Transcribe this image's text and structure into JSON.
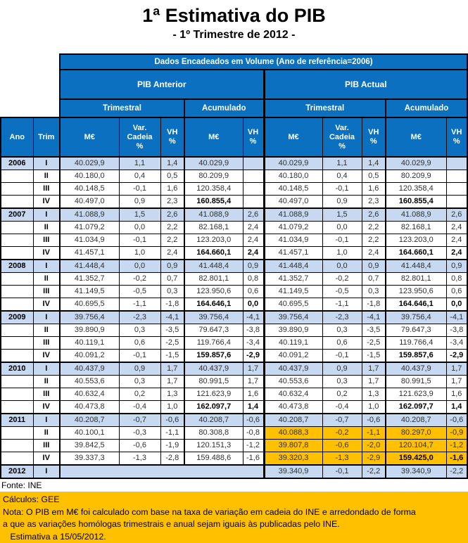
{
  "title": "1ª Estimativa do PIB",
  "subtitle": "- 1º Trimestre de 2012 -",
  "colors": {
    "header_blue": "#0b70bf",
    "row_shade_blue": "#c6d9f1",
    "highlight_orange": "#ffc000",
    "border_black": "#000000"
  },
  "table": {
    "band_title": "Dados Encadeados em Volume (Ano de referência=2006)",
    "section_left": "PIB Anterior",
    "section_right": "PIB  Actual",
    "sub_headers": [
      "Trimestral",
      "Acumulado",
      "Trimestral",
      "Acumulado"
    ],
    "col_headers": [
      "Ano",
      "Trim",
      "M€",
      "Var.\nCadeia\n%",
      "VH\n%",
      "M€",
      "VH\n%",
      "M€",
      "Var.\nCadeia\n%",
      "VH\n%",
      "M€",
      "VH\n%"
    ],
    "rows": [
      {
        "ano": "2006",
        "trim": "I",
        "shade": true,
        "ant": [
          "40.029,9",
          "1,1",
          "1,4",
          "40.029,9",
          ""
        ],
        "act": [
          "40.029,9",
          "1,1",
          "1,4",
          "40.029,9",
          ""
        ]
      },
      {
        "ano": "",
        "trim": "II",
        "ant": [
          "40.180,0",
          "0,4",
          "0,5",
          "80.209,9",
          ""
        ],
        "act": [
          "40.180,0",
          "0,4",
          "0,5",
          "80.209,9",
          ""
        ]
      },
      {
        "ano": "",
        "trim": "III",
        "ant": [
          "40.148,5",
          "-0,1",
          "1,6",
          "120.358,4",
          ""
        ],
        "act": [
          "40.148,5",
          "-0,1",
          "1,6",
          "120.358,4",
          ""
        ]
      },
      {
        "ano": "",
        "trim": "IV",
        "boldAntAcum": true,
        "boldActAcum": true,
        "ant": [
          "40.497,0",
          "0,9",
          "2,3",
          "160.855,4",
          ""
        ],
        "act": [
          "40.497,0",
          "0,9",
          "2,3",
          "160.855,4",
          ""
        ]
      },
      {
        "ano": "2007",
        "trim": "I",
        "shade": true,
        "ant": [
          "41.088,9",
          "1,5",
          "2,6",
          "41.088,9",
          "2,6"
        ],
        "act": [
          "41.088,9",
          "1,5",
          "2,6",
          "41.088,9",
          "2,6"
        ]
      },
      {
        "ano": "",
        "trim": "II",
        "ant": [
          "41.079,2",
          "0,0",
          "2,2",
          "82.168,1",
          "2,4"
        ],
        "act": [
          "41.079,2",
          "0,0",
          "2,2",
          "82.168,1",
          "2,4"
        ]
      },
      {
        "ano": "",
        "trim": "III",
        "ant": [
          "41.034,9",
          "-0,1",
          "2,2",
          "123.203,0",
          "2,4"
        ],
        "act": [
          "41.034,9",
          "-0,1",
          "2,2",
          "123.203,0",
          "2,4"
        ]
      },
      {
        "ano": "",
        "trim": "IV",
        "boldAntAcum": true,
        "boldActAcum": true,
        "ant": [
          "41.457,1",
          "1,0",
          "2,4",
          "164.660,1",
          "2,4"
        ],
        "act": [
          "41.457,1",
          "1,0",
          "2,4",
          "164.660,1",
          "2,4"
        ]
      },
      {
        "ano": "2008",
        "trim": "I",
        "shade": true,
        "ant": [
          "41.448,4",
          "0,0",
          "0,9",
          "41.448,4",
          "0,9"
        ],
        "act": [
          "41.448,4",
          "0,0",
          "0,9",
          "41.448,4",
          "0,9"
        ]
      },
      {
        "ano": "",
        "trim": "II",
        "ant": [
          "41.352,7",
          "-0,2",
          "0,7",
          "82.801,1",
          "0,8"
        ],
        "act": [
          "41.352,7",
          "-0,2",
          "0,7",
          "82.801,1",
          "0,8"
        ]
      },
      {
        "ano": "",
        "trim": "III",
        "ant": [
          "41.149,5",
          "-0,5",
          "0,3",
          "123.950,6",
          "0,6"
        ],
        "act": [
          "41.149,5",
          "-0,5",
          "0,3",
          "123.950,6",
          "0,6"
        ]
      },
      {
        "ano": "",
        "trim": "IV",
        "boldAntAcum": true,
        "boldActAcum": true,
        "ant": [
          "40.695,5",
          "-1,1",
          "-1,8",
          "164.646,1",
          "0,0"
        ],
        "act": [
          "40.695,5",
          "-1,1",
          "-1,8",
          "164.646,1",
          "0,0"
        ]
      },
      {
        "ano": "2009",
        "trim": "I",
        "shade": true,
        "ant": [
          "39.756,4",
          "-2,3",
          "-4,1",
          "39.756,4",
          "-4,1"
        ],
        "act": [
          "39.756,4",
          "-2,3",
          "-4,1",
          "39.756,4",
          "-4,1"
        ]
      },
      {
        "ano": "",
        "trim": "II",
        "ant": [
          "39.890,9",
          "0,3",
          "-3,5",
          "79.647,3",
          "-3,8"
        ],
        "act": [
          "39.890,9",
          "0,3",
          "-3,5",
          "79.647,3",
          "-3,8"
        ]
      },
      {
        "ano": "",
        "trim": "III",
        "ant": [
          "40.119,1",
          "0,6",
          "-2,5",
          "119.766,4",
          "-3,4"
        ],
        "act": [
          "40.119,1",
          "0,6",
          "-2,5",
          "119.766,4",
          "-3,4"
        ]
      },
      {
        "ano": "",
        "trim": "IV",
        "boldAntAcum": true,
        "boldActAcum": true,
        "ant": [
          "40.091,2",
          "-0,1",
          "-1,5",
          "159.857,6",
          "-2,9"
        ],
        "act": [
          "40.091,2",
          "-0,1",
          "-1,5",
          "159.857,6",
          "-2,9"
        ]
      },
      {
        "ano": "2010",
        "trim": "I",
        "shade": true,
        "ant": [
          "40.437,9",
          "0,9",
          "1,7",
          "40.437,9",
          "1,7"
        ],
        "act": [
          "40.437,9",
          "0,9",
          "1,7",
          "40.437,9",
          "1,7"
        ]
      },
      {
        "ano": "",
        "trim": "II",
        "ant": [
          "40.553,6",
          "0,3",
          "1,7",
          "80.991,5",
          "1,7"
        ],
        "act": [
          "40.553,6",
          "0,3",
          "1,7",
          "80.991,5",
          "1,7"
        ]
      },
      {
        "ano": "",
        "trim": "III",
        "ant": [
          "40.632,4",
          "0,2",
          "1,3",
          "121.623,9",
          "1,6"
        ],
        "act": [
          "40.632,4",
          "0,2",
          "1,3",
          "121.623,9",
          "1,6"
        ]
      },
      {
        "ano": "",
        "trim": "IV",
        "boldAntAcum": true,
        "boldActAcum": true,
        "ant": [
          "40.473,8",
          "-0,4",
          "1,0",
          "162.097,7",
          "1,4"
        ],
        "act": [
          "40.473,8",
          "-0,4",
          "1,0",
          "162.097,7",
          "1,4"
        ]
      },
      {
        "ano": "2011",
        "trim": "I",
        "shade": true,
        "ant": [
          "40.208,7",
          "-0,7",
          "-0,6",
          "40.208,7",
          "-0,6"
        ],
        "act": [
          "40.208,7",
          "-0,7",
          "-0,6",
          "40.208,7",
          "-0,6"
        ]
      },
      {
        "ano": "",
        "trim": "II",
        "orangeAct": true,
        "ant": [
          "40.100,1",
          "-0,3",
          "-1,1",
          "80.308,8",
          "-0,8"
        ],
        "act": [
          "40.088,3",
          "-0,2",
          "-1,1",
          "80.297,0",
          "-0,9"
        ]
      },
      {
        "ano": "",
        "trim": "III",
        "orangeAct": true,
        "ant": [
          "39.842,5",
          "-0,6",
          "-1,9",
          "120.151,3",
          "-1,2"
        ],
        "act": [
          "39.807,8",
          "-0,6",
          "-2,0",
          "120.104,7",
          "-1,2"
        ]
      },
      {
        "ano": "",
        "trim": "IV",
        "orangeAct": true,
        "boldActAcum": true,
        "ant": [
          "39.337,3",
          "-1,3",
          "-2,8",
          "159.488,6",
          "-1,6"
        ],
        "act": [
          "39.320,3",
          "-1,3",
          "-2,9",
          "159.425,0",
          "-1,6"
        ]
      },
      {
        "ano": "2012",
        "trim": "I",
        "shade": true,
        "antEmpty": true,
        "orangeAct": true,
        "ant": [],
        "act": [
          "39.340,9",
          "-0,1",
          "-2,2",
          "39.340,9",
          "-2,2"
        ]
      }
    ]
  },
  "footer": {
    "fonte": "Fonte: INE",
    "note_lines": [
      "Cálculos: GEE",
      "Nota: O PIB em M€ foi calculado com base na taxa de variação em cadeia do INE e arredondado de forma",
      "a que as variações homólogas trimestrais e anual sejam iguais às publicadas pelo INE.",
      "   Estimativa a 15/05/2012."
    ]
  }
}
